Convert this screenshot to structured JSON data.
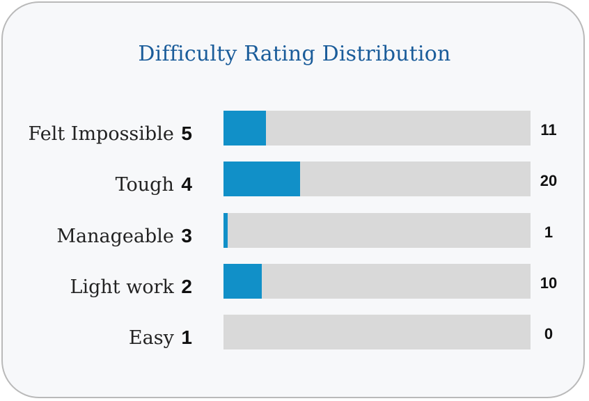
{
  "chart_data": {
    "type": "bar",
    "orientation": "horizontal",
    "title": "Difficulty Rating Distribution",
    "xlim": [
      0,
      80
    ],
    "bar_color": "#1190c8",
    "track_color": "#d9d9d9",
    "title_color": "#1a5c9a",
    "categories": [
      {
        "label": "Felt Impossible",
        "rank": "5",
        "value": 11,
        "value_label": "11"
      },
      {
        "label": "Tough",
        "rank": "4",
        "value": 20,
        "value_label": "20"
      },
      {
        "label": "Manageable",
        "rank": "3",
        "value": 1,
        "value_label": "1"
      },
      {
        "label": "Light work",
        "rank": "2",
        "value": 10,
        "value_label": "10"
      },
      {
        "label": "Easy",
        "rank": "1",
        "value": 0,
        "value_label": "0"
      }
    ]
  }
}
